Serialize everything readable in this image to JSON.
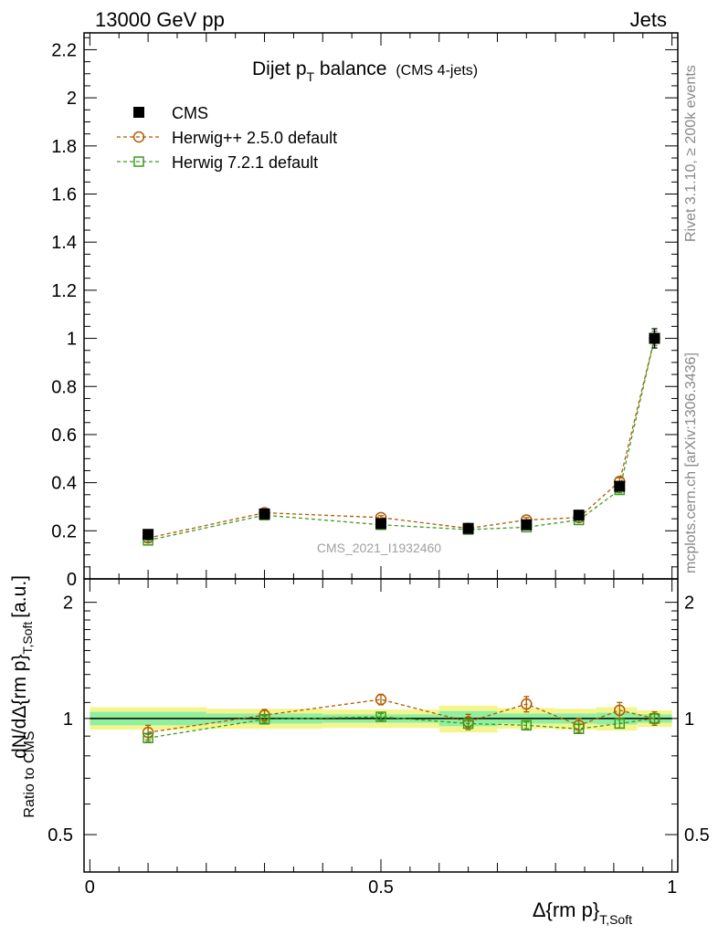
{
  "header": {
    "left": "13000 GeV pp",
    "right": "Jets"
  },
  "title": {
    "main": "Dijet p",
    "sub": "T",
    "rest": " balance",
    "note": "(CMS 4-jets)"
  },
  "side_labels": {
    "rivet": "Rivet 3.1.10, ≥ 200k events",
    "mcplots": "mcplots.cern.ch [arXiv:1306.3436]"
  },
  "watermark": "CMS_2021_I1932460",
  "chart_data": [
    {
      "type": "scatter",
      "panel": "main",
      "ylabel": "dN/dΔ{rm p}",
      "ylabel_sub": "T,Soft",
      "ylabel_unit": "[a.u.]",
      "xlim": [
        -0.01,
        1.01
      ],
      "ylim": [
        0,
        2.27
      ],
      "yticks": [
        0,
        0.2,
        0.4,
        0.6,
        0.8,
        1,
        1.2,
        1.4,
        1.6,
        1.8,
        2,
        2.2
      ],
      "ytick_labels": [
        "0",
        "0.2",
        "0.4",
        "0.6",
        "0.8",
        "1",
        "1.2",
        "1.4",
        "1.6",
        "1.8",
        "2",
        "2.2"
      ],
      "legend_position": "top-left",
      "series": [
        {
          "name": "CMS",
          "marker": "filled-square",
          "color": "#000000",
          "x": [
            0.1,
            0.3,
            0.5,
            0.65,
            0.75,
            0.84,
            0.91,
            0.97
          ],
          "y": [
            0.185,
            0.27,
            0.23,
            0.21,
            0.225,
            0.265,
            0.385,
            1.0
          ],
          "yerr": [
            0.012,
            0.012,
            0.01,
            0.01,
            0.01,
            0.012,
            0.02,
            0.04
          ]
        },
        {
          "name": "Herwig++ 2.5.0 default",
          "marker": "open-circle",
          "color": "#b05a00",
          "x": [
            0.1,
            0.3,
            0.5,
            0.65,
            0.75,
            0.84,
            0.91,
            0.97
          ],
          "y": [
            0.17,
            0.275,
            0.255,
            0.21,
            0.245,
            0.255,
            0.405,
            1.0
          ],
          "yerr": [
            0.008,
            0.008,
            0.008,
            0.008,
            0.01,
            0.01,
            0.015,
            0.03
          ]
        },
        {
          "name": "Herwig 7.2.1 default",
          "marker": "open-square",
          "color": "#3c9a1c",
          "x": [
            0.1,
            0.3,
            0.5,
            0.65,
            0.75,
            0.84,
            0.91,
            0.97
          ],
          "y": [
            0.16,
            0.265,
            0.225,
            0.205,
            0.215,
            0.245,
            0.37,
            1.0
          ],
          "yerr": [
            0.006,
            0.006,
            0.006,
            0.006,
            0.006,
            0.008,
            0.012,
            0.03
          ]
        }
      ]
    },
    {
      "type": "scatter",
      "panel": "ratio",
      "ylabel": "Ratio to CMS",
      "xlabel": "Δ{rm p}",
      "xlabel_sub": "T,Soft",
      "xlim": [
        -0.01,
        1.01
      ],
      "ylim": [
        0.4,
        2.3
      ],
      "log_y": true,
      "xticks": [
        0,
        0.5,
        1
      ],
      "xtick_labels": [
        "0",
        "0.5",
        "1"
      ],
      "yticks": [
        0.5,
        1,
        2
      ],
      "ytick_labels": [
        "0.5",
        "1",
        "2"
      ],
      "bands": {
        "bins": [
          [
            0.0,
            0.2
          ],
          [
            0.2,
            0.4
          ],
          [
            0.4,
            0.6
          ],
          [
            0.6,
            0.7
          ],
          [
            0.7,
            0.8
          ],
          [
            0.8,
            0.87
          ],
          [
            0.87,
            0.94
          ],
          [
            0.94,
            1.0
          ]
        ],
        "stat": [
          [
            0.96,
            1.04
          ],
          [
            0.97,
            1.03
          ],
          [
            0.975,
            1.025
          ],
          [
            0.955,
            1.045
          ],
          [
            0.97,
            1.03
          ],
          [
            0.97,
            1.03
          ],
          [
            0.965,
            1.035
          ],
          [
            0.975,
            1.025
          ]
        ],
        "total": [
          [
            0.935,
            1.07
          ],
          [
            0.94,
            1.06
          ],
          [
            0.945,
            1.055
          ],
          [
            0.92,
            1.08
          ],
          [
            0.94,
            1.065
          ],
          [
            0.935,
            1.06
          ],
          [
            0.93,
            1.07
          ],
          [
            0.95,
            1.05
          ]
        ],
        "stat_color": "#90f0a0",
        "total_color": "#f5f590"
      },
      "series": [
        {
          "name": "Herwig++ 2.5.0 default",
          "marker": "open-circle",
          "color": "#b05a00",
          "x": [
            0.1,
            0.3,
            0.5,
            0.65,
            0.75,
            0.84,
            0.91,
            0.97
          ],
          "y": [
            0.92,
            1.02,
            1.12,
            0.98,
            1.09,
            0.96,
            1.05,
            1.0
          ],
          "yerr": [
            0.04,
            0.035,
            0.035,
            0.045,
            0.05,
            0.04,
            0.05,
            0.04
          ]
        },
        {
          "name": "Herwig 7.2.1 default",
          "marker": "open-square",
          "color": "#3c9a1c",
          "x": [
            0.1,
            0.3,
            0.5,
            0.65,
            0.75,
            0.84,
            0.91,
            0.97
          ],
          "y": [
            0.89,
            0.995,
            1.01,
            0.97,
            0.96,
            0.94,
            0.97,
            1.0
          ],
          "yerr": [
            0.02,
            0.02,
            0.02,
            0.02,
            0.02,
            0.025,
            0.025,
            0.03
          ]
        }
      ]
    }
  ]
}
